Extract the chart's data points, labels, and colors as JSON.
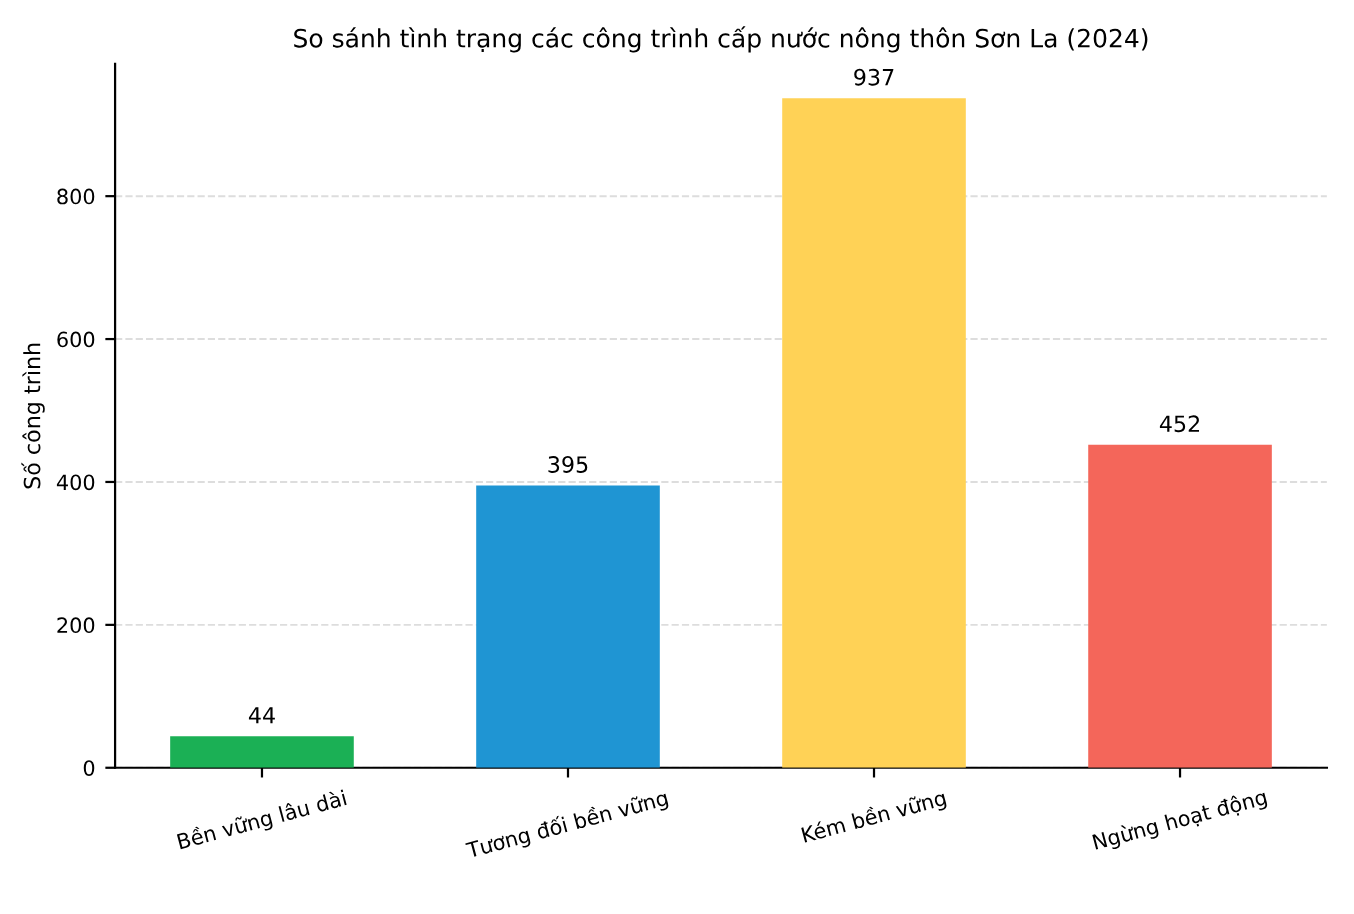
{
  "chart_data": {
    "type": "bar",
    "title": "So sánh tình trạng các công trình cấp nước nông thôn Sơn La (2024)",
    "ylabel": "Số công trình",
    "categories": [
      "Bền vững lâu dài",
      "Tương đối bền vững",
      "Kém bền vững",
      "Ngừng hoạt động"
    ],
    "values": [
      44,
      395,
      937,
      452
    ],
    "colors": [
      "#1bb055",
      "#1f95d3",
      "#ffd256",
      "#f4665a"
    ],
    "ylim": [
      0,
      985
    ],
    "yticks": [
      0,
      200,
      400,
      600,
      800
    ],
    "grid": "y",
    "data_labels": true
  }
}
